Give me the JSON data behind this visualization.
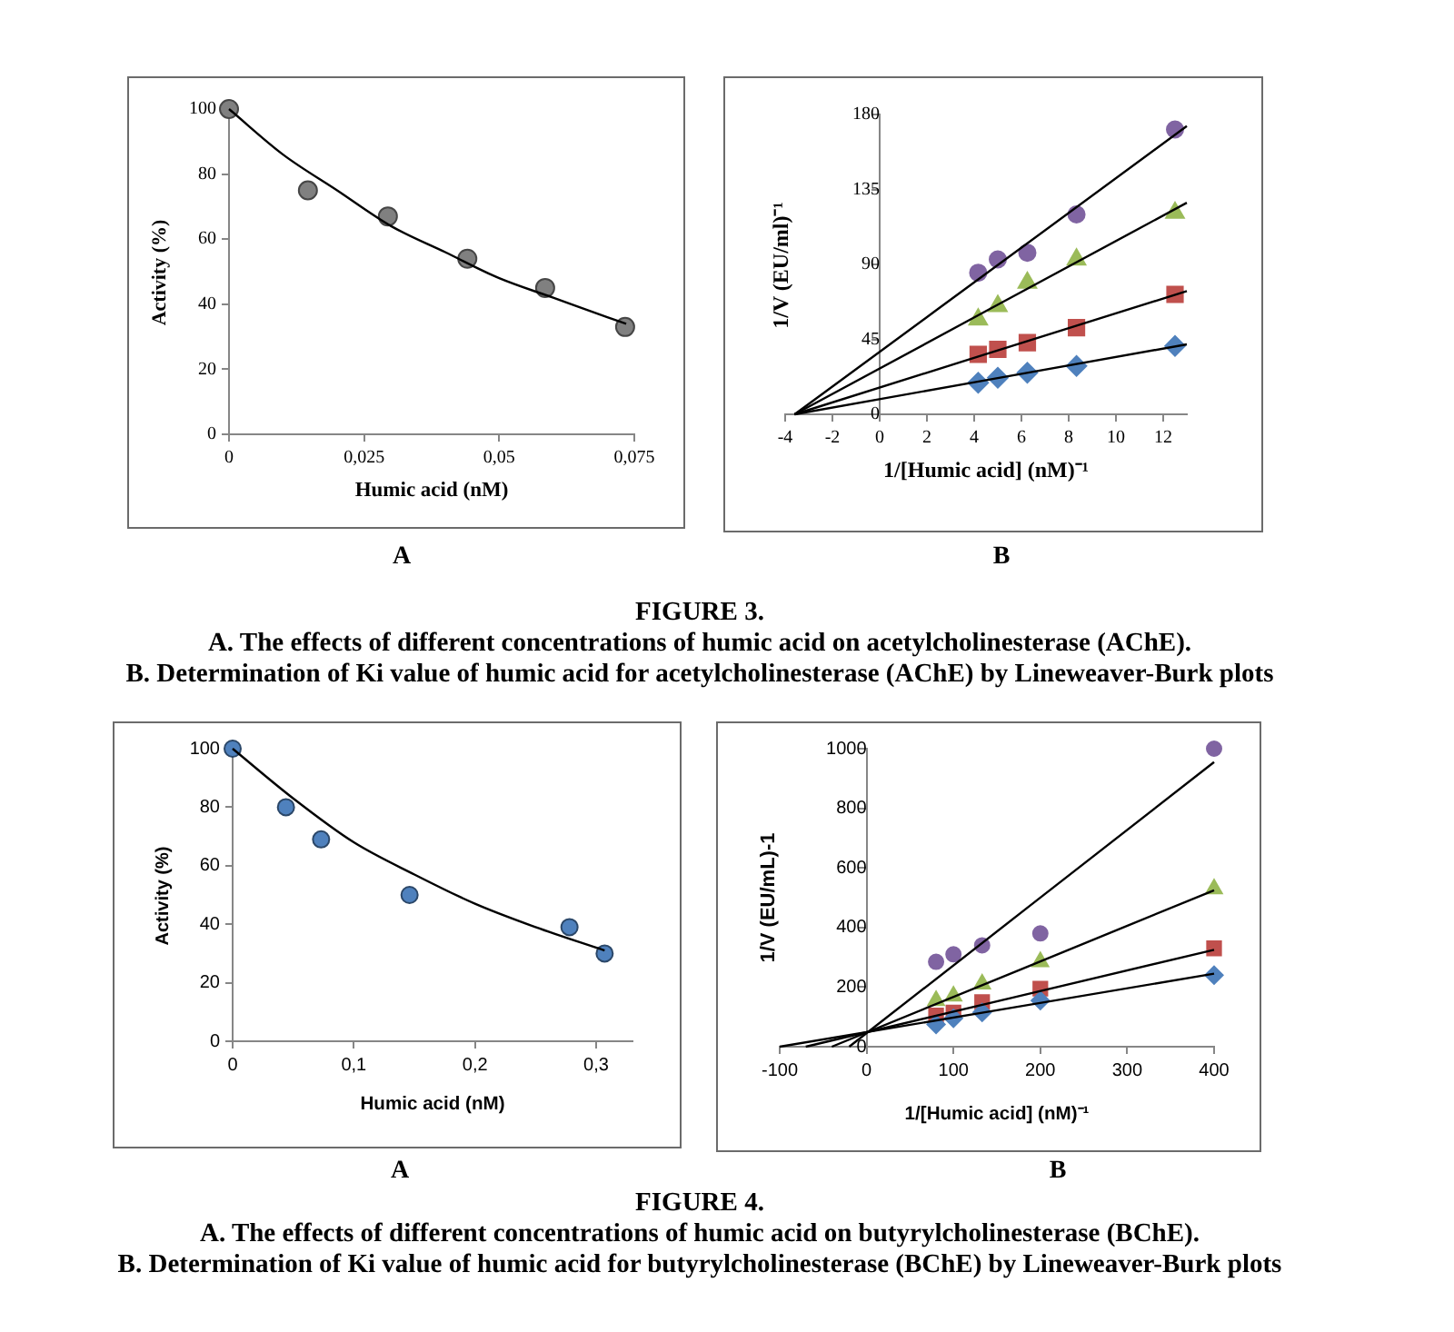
{
  "chart_data": [
    {
      "type": "scatter",
      "xlabel": "Humic acid (nM)",
      "ylabel": "Activity (%)",
      "annotations": [
        "A"
      ],
      "xlim": [
        0,
        0.075
      ],
      "xticks": [
        0,
        {
          "value": 0.025,
          "label": "0,025"
        },
        {
          "value": 0.05,
          "label": "0,05"
        },
        {
          "value": 0.075,
          "label": "0,075"
        }
      ],
      "ylim": [
        0,
        100
      ],
      "yticks": [
        0,
        20,
        40,
        60,
        80,
        100
      ],
      "series": [
        {
          "type": "scatter",
          "marker": "circle",
          "color": "#808080",
          "x": [
            0,
            0.0146,
            0.0294,
            0.0441,
            0.0585,
            0.0733
          ],
          "values": [
            100,
            75,
            67,
            54,
            45,
            33
          ]
        },
        {
          "type": "line",
          "marker": "none",
          "color": "#000000",
          "x": [
            0,
            0.01,
            0.02,
            0.03,
            0.04,
            0.05,
            0.06,
            0.07,
            0.0735
          ],
          "values": [
            100,
            86,
            75,
            64,
            56,
            48,
            42,
            36,
            34
          ]
        }
      ]
    },
    {
      "type": "scatter",
      "xlabel": "1/[Humic acid] (nM)⁻¹",
      "ylabel": "1/V (EU/ml)⁻¹",
      "annotations": [
        "B",
        "FIGURE 3.",
        "A. The effects of different concentrations of humic acid on acetylcholinesterase (AChE).",
        "B. Determination of Ki value of humic acid for acetylcholinesterase (AChE) by Lineweaver-Burk plots"
      ],
      "xlim": [
        -4,
        13
      ],
      "xticks": [
        -4,
        -2,
        0,
        2,
        4,
        6,
        8,
        10,
        12
      ],
      "ylim": [
        0,
        180
      ],
      "yticks": [
        0,
        45,
        90,
        135,
        180
      ],
      "series": [
        {
          "type": "scatter",
          "marker": "diamond",
          "color": "#4f81bd",
          "x": [
            4.17,
            5,
            6.25,
            8.33,
            12.5
          ],
          "values": [
            19,
            22,
            25,
            29,
            41
          ]
        },
        {
          "type": "scatter",
          "marker": "square",
          "color": "#c0504d",
          "x": [
            4.17,
            5,
            6.25,
            8.33,
            12.5
          ],
          "values": [
            36,
            39,
            43,
            52,
            72
          ]
        },
        {
          "type": "scatter",
          "marker": "triangle",
          "color": "#9bbb59",
          "x": [
            4.17,
            5,
            6.25,
            8.33,
            12.5
          ],
          "values": [
            57,
            65,
            79,
            93,
            121
          ]
        },
        {
          "type": "scatter",
          "marker": "circle",
          "color": "#8064a2",
          "x": [
            4.17,
            5,
            6.25,
            8.33,
            12.5
          ],
          "values": [
            85,
            93,
            97,
            120,
            171
          ]
        },
        {
          "type": "line",
          "marker": "none",
          "color": "#000000",
          "x": [
            -3.6,
            13
          ],
          "values": [
            0,
            42
          ]
        },
        {
          "type": "line",
          "marker": "none",
          "color": "#000000",
          "x": [
            -3.6,
            13
          ],
          "values": [
            0,
            74
          ]
        },
        {
          "type": "line",
          "marker": "none",
          "color": "#000000",
          "x": [
            -3.6,
            13
          ],
          "values": [
            0,
            127
          ]
        },
        {
          "type": "line",
          "marker": "none",
          "color": "#000000",
          "x": [
            -3.6,
            13
          ],
          "values": [
            0,
            173
          ]
        }
      ]
    },
    {
      "type": "scatter",
      "xlabel": "Humic acid (nM)",
      "ylabel": "Activity (%)",
      "annotations": [
        "A"
      ],
      "xlim": [
        0,
        0.33
      ],
      "xticks": [
        0,
        {
          "value": 0.1,
          "label": "0,1"
        },
        {
          "value": 0.2,
          "label": "0,2"
        },
        {
          "value": 0.3,
          "label": "0,3"
        }
      ],
      "ylim": [
        0,
        100
      ],
      "yticks": [
        0,
        20,
        40,
        60,
        80,
        100
      ],
      "series": [
        {
          "type": "scatter",
          "marker": "circle",
          "color": "#4f81bd",
          "x": [
            0,
            0.044,
            0.073,
            0.146,
            0.278,
            0.307
          ],
          "values": [
            100,
            80,
            69,
            50,
            39,
            30
          ]
        },
        {
          "type": "line",
          "marker": "none",
          "color": "#000000",
          "x": [
            0,
            0.05,
            0.1,
            0.15,
            0.2,
            0.25,
            0.307
          ],
          "values": [
            100,
            83,
            68,
            57,
            47,
            39,
            31
          ]
        }
      ]
    },
    {
      "type": "scatter",
      "xlabel": "1/[Humic acid] (nM)⁻¹",
      "ylabel": "1/V (EU/mL)-1",
      "annotations": [
        "B",
        "FIGURE 4.",
        "A. The effects of different concentrations of humic acid on butyrylcholinesterase (BChE).",
        "B. Determination of Ki value of humic acid for butyrylcholinesterase (BChE) by Lineweaver-Burk plots"
      ],
      "xlim": [
        -100,
        400
      ],
      "xticks": [
        -100,
        0,
        100,
        200,
        300,
        400
      ],
      "ylim": [
        0,
        1000
      ],
      "yticks": [
        0,
        200,
        400,
        600,
        800,
        1000
      ],
      "series": [
        {
          "type": "scatter",
          "marker": "diamond",
          "color": "#4f81bd",
          "x": [
            80,
            100,
            133,
            200,
            400
          ],
          "values": [
            75,
            95,
            115,
            155,
            240
          ]
        },
        {
          "type": "scatter",
          "marker": "square",
          "color": "#c0504d",
          "x": [
            80,
            100,
            133,
            200,
            400
          ],
          "values": [
            105,
            115,
            150,
            195,
            330
          ]
        },
        {
          "type": "scatter",
          "marker": "triangle",
          "color": "#9bbb59",
          "x": [
            80,
            100,
            133,
            200,
            400
          ],
          "values": [
            155,
            170,
            210,
            285,
            530
          ]
        },
        {
          "type": "scatter",
          "marker": "circle",
          "color": "#8064a2",
          "x": [
            80,
            100,
            133,
            200,
            400
          ],
          "values": [
            285,
            310,
            340,
            380,
            1000
          ]
        },
        {
          "type": "line",
          "marker": "none",
          "color": "#000000",
          "x": [
            -100,
            400
          ],
          "values": [
            0,
            245
          ]
        },
        {
          "type": "line",
          "marker": "none",
          "color": "#000000",
          "x": [
            -70,
            400
          ],
          "values": [
            0,
            325
          ]
        },
        {
          "type": "line",
          "marker": "none",
          "color": "#000000",
          "x": [
            -40,
            400
          ],
          "values": [
            0,
            525
          ]
        },
        {
          "type": "line",
          "marker": "none",
          "color": "#000000",
          "x": [
            -20,
            400
          ],
          "values": [
            0,
            955
          ]
        }
      ]
    }
  ]
}
